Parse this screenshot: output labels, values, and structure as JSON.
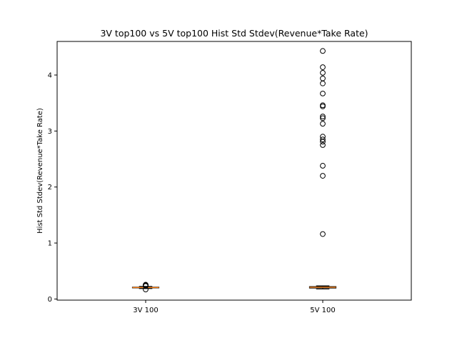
{
  "chart_data": {
    "type": "box",
    "title": "3V top100 vs 5V top100 Hist Std Stdev(Revenue*Take Rate)",
    "xlabel": "",
    "ylabel": "Hist Std Stdev(Revenue*Take Rate)",
    "ylim": [
      -0.02,
      4.6
    ],
    "yticks": [
      0,
      1,
      2,
      3,
      4
    ],
    "categories": [
      "3V 100",
      "5V 100"
    ],
    "grid": false,
    "colors": {
      "box": "#000000",
      "median": "#ff7f0e",
      "flier": "#000000"
    },
    "boxes": [
      {
        "label": "3V 100",
        "whisker_low": 0.185,
        "q1": 0.198,
        "median": 0.205,
        "q3": 0.212,
        "whisker_high": 0.225,
        "fliers": [
          0.17,
          0.232,
          0.238,
          0.244,
          0.25,
          0.255
        ]
      },
      {
        "label": "5V 100",
        "whisker_low": 0.18,
        "q1": 0.195,
        "median": 0.21,
        "q3": 0.222,
        "whisker_high": 0.235,
        "fliers": [
          1.16,
          2.2,
          2.38,
          2.75,
          2.81,
          2.85,
          2.9,
          3.13,
          3.23,
          3.26,
          3.44,
          3.46,
          3.67,
          3.85,
          3.94,
          4.04,
          4.14,
          4.43
        ]
      }
    ]
  }
}
